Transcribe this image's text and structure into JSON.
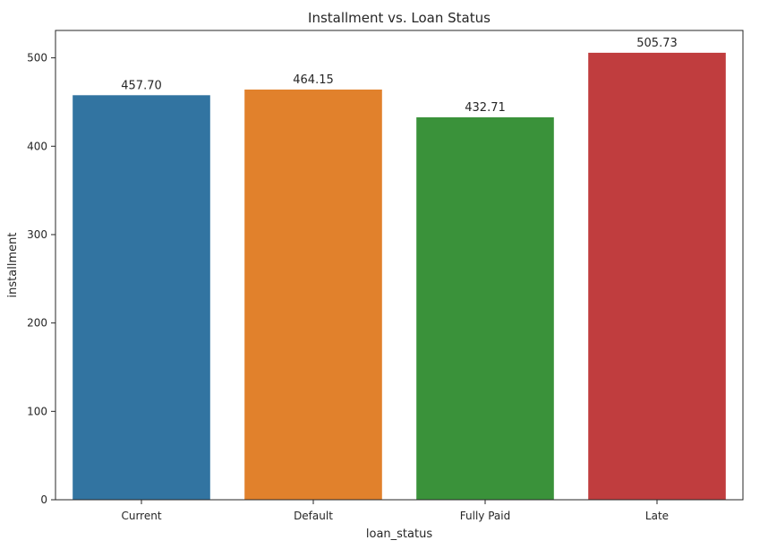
{
  "chart_data": {
    "type": "bar",
    "title": "Installment vs. Loan Status",
    "xlabel": "loan_status",
    "ylabel": "installment",
    "categories": [
      "Current",
      "Default",
      "Fully Paid",
      "Late"
    ],
    "values": [
      457.7,
      464.15,
      432.71,
      505.73
    ],
    "value_labels": [
      "457.70",
      "464.15",
      "432.71",
      "505.73"
    ],
    "colors": [
      "#3274a1",
      "#e1812c",
      "#3a923a",
      "#c03d3e"
    ],
    "ylim": [
      0,
      531
    ],
    "yticks": [
      0,
      100,
      200,
      300,
      400,
      500
    ],
    "grid": false,
    "legend": false
  }
}
